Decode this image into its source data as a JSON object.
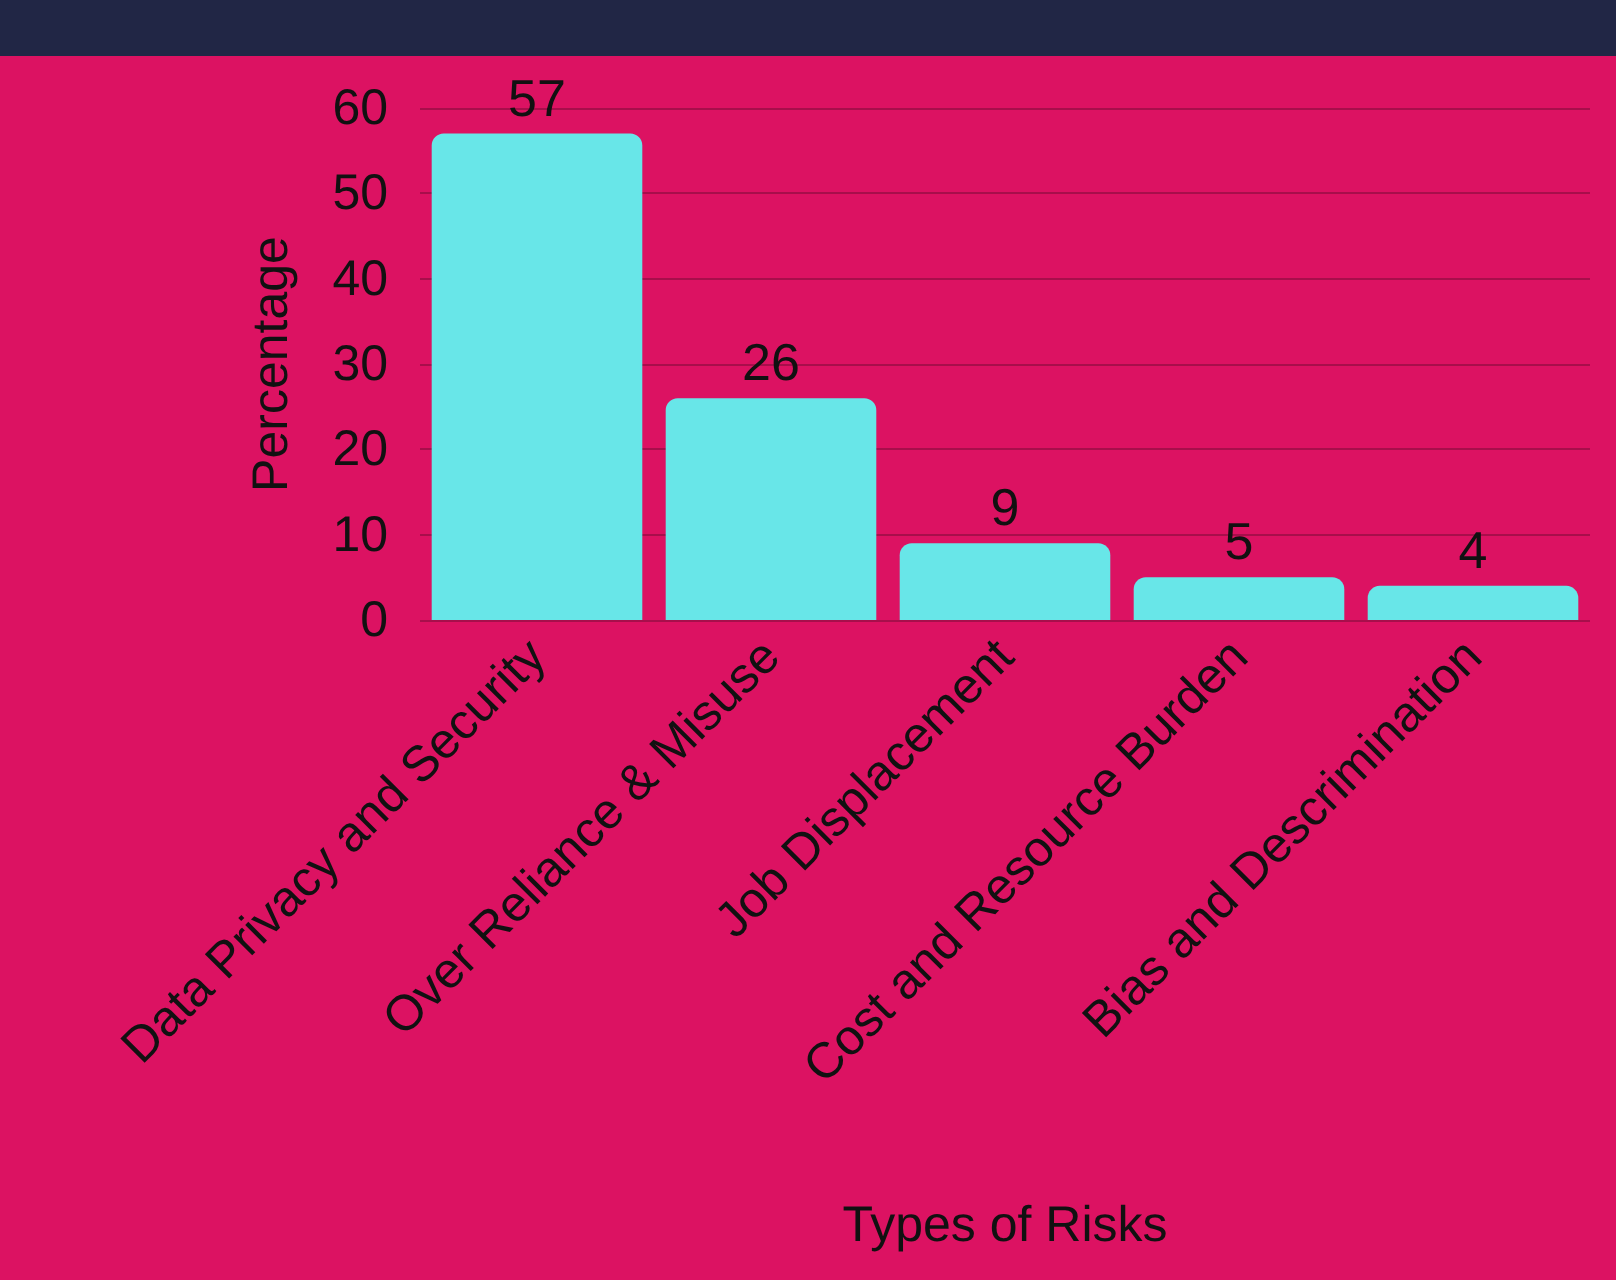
{
  "chart_data": {
    "type": "bar",
    "xlabel": "Types of Risks",
    "ylabel": "Percentage",
    "categories": [
      "Data Privacy and Security",
      "Over Reliance & Misuse",
      "Job Displacement",
      "Cost and Resource Burden",
      "Bias and Descrimination"
    ],
    "values": [
      57,
      26,
      9,
      5,
      4
    ],
    "color": "#68e6e8",
    "ylim": [
      0,
      60
    ],
    "yticks": [
      0,
      10,
      20,
      30,
      40,
      50,
      60
    ],
    "grid": "y",
    "data_labels": true
  }
}
